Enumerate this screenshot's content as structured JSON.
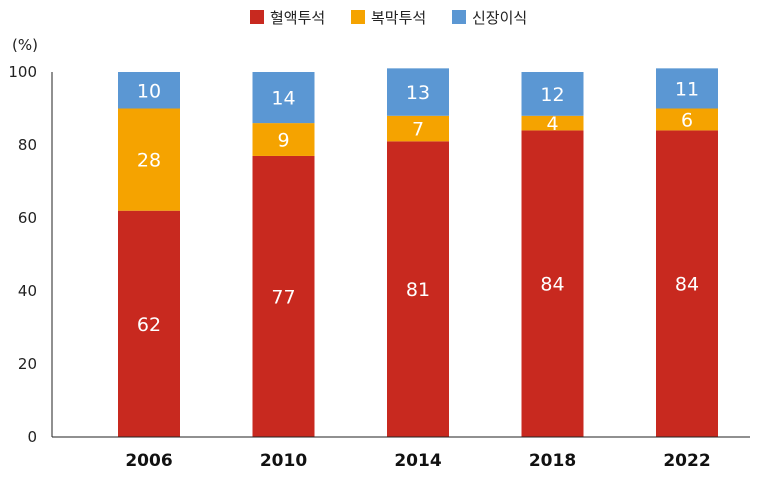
{
  "chart_data": {
    "type": "bar",
    "stacked": true,
    "title": "",
    "xlabel": "",
    "ylabel": "(%)",
    "ylim": [
      0,
      100
    ],
    "yticks": [
      0,
      20,
      40,
      60,
      80,
      100
    ],
    "grid": false,
    "legend_position": "top-center",
    "categories": [
      "2006",
      "2010",
      "2014",
      "2018",
      "2022"
    ],
    "series": [
      {
        "name": "혈액투석",
        "color": "#c8291f",
        "values": [
          62,
          77,
          81,
          84,
          84
        ]
      },
      {
        "name": "복막투석",
        "color": "#f5a300",
        "values": [
          28,
          9,
          7,
          4,
          6
        ]
      },
      {
        "name": "신장이식",
        "color": "#5b97d3",
        "values": [
          10,
          14,
          13,
          12,
          11
        ]
      }
    ]
  }
}
